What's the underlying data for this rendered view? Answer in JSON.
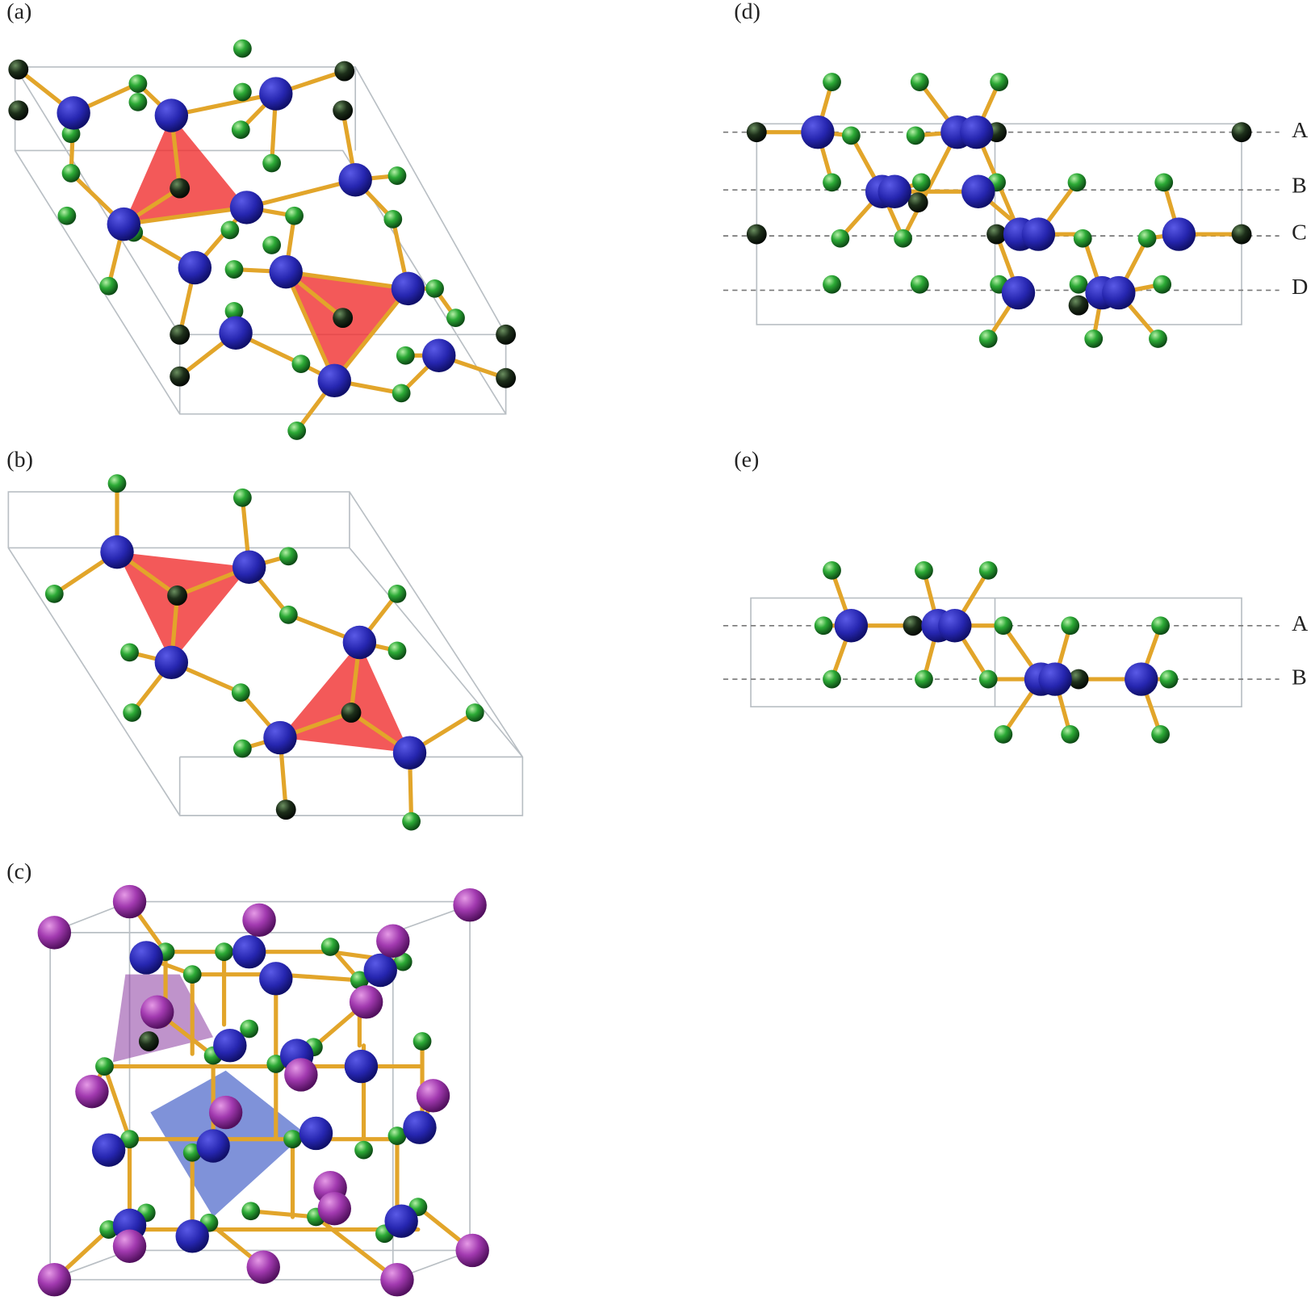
{
  "panels": [
    {
      "label": "(a)"
    },
    {
      "label": "(b)"
    },
    {
      "label": "(c)"
    },
    {
      "label": "(d)",
      "layers": [
        "A",
        "B",
        "C",
        "D"
      ]
    },
    {
      "label": "(e)",
      "layers": [
        "A",
        "B"
      ]
    }
  ]
}
